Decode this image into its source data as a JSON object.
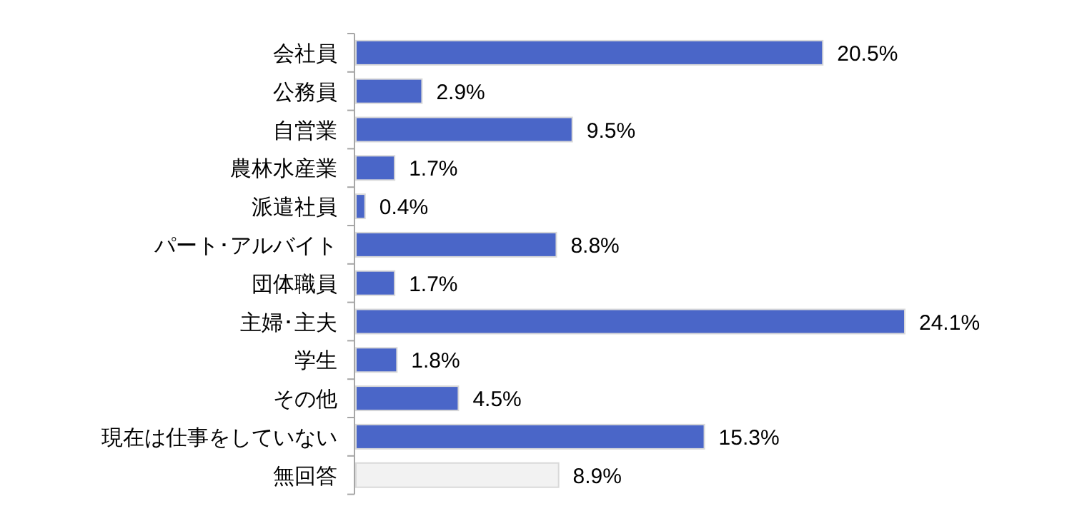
{
  "chart_data": {
    "type": "bar",
    "orientation": "horizontal",
    "categories": [
      "会社員",
      "公務員",
      "自営業",
      "農林水産業",
      "派遣社員",
      "パート･アルバイト",
      "団体職員",
      "主婦･主夫",
      "学生",
      "その他",
      "現在は仕事をしていない",
      "無回答"
    ],
    "values": [
      20.5,
      2.9,
      9.5,
      1.7,
      0.4,
      8.8,
      1.7,
      24.1,
      1.8,
      4.5,
      15.3,
      8.9
    ],
    "colors": [
      "#4a66c8",
      "#4a66c8",
      "#4a66c8",
      "#4a66c8",
      "#4a66c8",
      "#4a66c8",
      "#4a66c8",
      "#4a66c8",
      "#4a66c8",
      "#4a66c8",
      "#4a66c8",
      "#f2f2f2"
    ],
    "value_labels": [
      "20.5%",
      "2.9%",
      "9.5%",
      "1.7%",
      "0.4%",
      "8.8%",
      "1.7%",
      "24.1%",
      "1.8%",
      "4.5%",
      "15.3%",
      "8.9%"
    ]
  }
}
